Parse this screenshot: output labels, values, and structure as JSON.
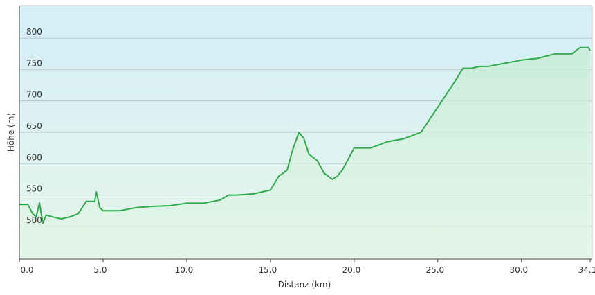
{
  "chart_data": {
    "type": "area",
    "x_label": "Distanz  (km)",
    "y_label": "Höhe (m)",
    "color": "#2eaa4a",
    "x": [
      0,
      0.5,
      0.8,
      1.0,
      1.2,
      1.4,
      1.6,
      2.0,
      2.5,
      3.0,
      3.5,
      4.0,
      4.5,
      4.6,
      4.8,
      5.0,
      6.0,
      7.0,
      8.0,
      9.0,
      10.0,
      11.0,
      12.0,
      12.5,
      13.0,
      14.0,
      14.5,
      15.0,
      15.5,
      16.0,
      16.3,
      16.7,
      17.0,
      17.3,
      17.8,
      18.2,
      18.7,
      19.0,
      19.3,
      19.6,
      20.0,
      21.0,
      22.0,
      23.0,
      24.0,
      25.0,
      25.5,
      26.0,
      26.5,
      27.0,
      27.5,
      28.0,
      29.0,
      30.0,
      31.0,
      32.0,
      32.5,
      33.0,
      33.5,
      34.0,
      34.1
    ],
    "values": [
      535,
      535,
      520,
      515,
      538,
      505,
      518,
      515,
      512,
      515,
      520,
      540,
      540,
      555,
      530,
      525,
      525,
      530,
      532,
      533,
      537,
      537,
      542,
      550,
      550,
      552,
      555,
      558,
      580,
      590,
      620,
      650,
      640,
      615,
      605,
      585,
      575,
      580,
      590,
      605,
      625,
      625,
      635,
      640,
      650,
      690,
      710,
      730,
      752,
      752,
      755,
      755,
      760,
      765,
      768,
      775,
      775,
      775,
      785,
      785,
      780
    ],
    "xlim": [
      0,
      34.1
    ],
    "ylim": [
      448,
      852
    ],
    "xticks": [
      {
        "value": 0,
        "label": "0.0"
      },
      {
        "value": 5,
        "label": "5.0"
      },
      {
        "value": 10,
        "label": "10.0"
      },
      {
        "value": 15,
        "label": "15.0"
      },
      {
        "value": 20,
        "label": "20.0"
      },
      {
        "value": 25,
        "label": "25.0"
      },
      {
        "value": 30,
        "label": "30.0"
      },
      34.1
    ],
    "yticks": [
      500,
      550,
      600,
      650,
      700,
      750,
      800
    ],
    "grid": true
  }
}
